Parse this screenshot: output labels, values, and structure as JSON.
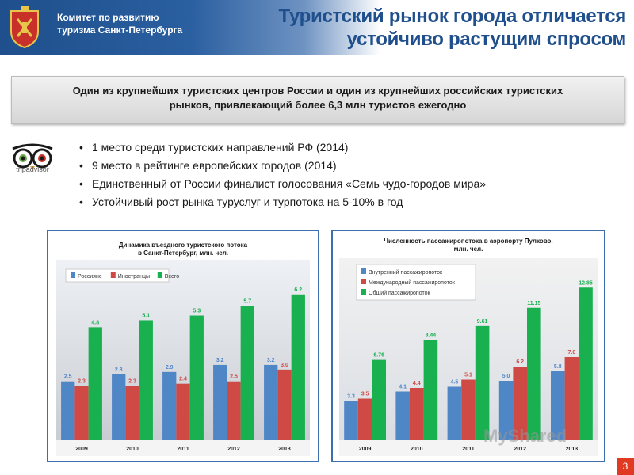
{
  "header": {
    "org_name_line1": "Комитет по развитию",
    "org_name_line2": "туризма Санкт-Петербурга",
    "title_line1": "Туристский рынок города отличается",
    "title_line2": "устойчиво растущим спросом",
    "emblem_icon": "coat-of-arms-icon"
  },
  "callout": {
    "line1": "Один из крупнейших туристских центров России и один из крупнейших российских туристских",
    "line2": "рынков, привлекающий более 6,3 млн туристов ежегодно"
  },
  "tripadvisor": {
    "label": "tripadvisor",
    "icon": "owl-logo-icon"
  },
  "bullets": [
    "1 место среди туристских направлений РФ (2014)",
    "9 место в рейтинге европейских городов (2014)",
    "Единственный от России финалист голосования «Семь чудо-городов мира»",
    "Устойчивый рост рынка туруслуг и турпотока на 5-10% в год"
  ],
  "colors": {
    "series_blue": "#4f86c6",
    "series_red": "#cf4a45",
    "series_green": "#19b050",
    "header_blue": "#1f4f8c"
  },
  "chart_data": [
    {
      "type": "bar",
      "title_line1": "Динамика въездного туристского потока",
      "title_line2": "в Санкт-Петербург, млн. чел.",
      "categories": [
        "2009",
        "2010",
        "2011",
        "2012",
        "2013"
      ],
      "series": [
        {
          "name": "Россияне",
          "values": [
            2.5,
            2.8,
            2.9,
            3.2,
            3.2
          ],
          "labels": [
            "2.5",
            "2.8",
            "2.9",
            "3.2",
            "3.2"
          ]
        },
        {
          "name": "Иностранцы",
          "values": [
            2.3,
            2.3,
            2.4,
            2.5,
            3.0
          ],
          "labels": [
            "2.3",
            "2.3",
            "2.4",
            "2.5",
            "3.0"
          ]
        },
        {
          "name": "Всего",
          "values": [
            4.8,
            5.1,
            5.3,
            5.7,
            6.2
          ],
          "labels": [
            "4.8",
            "5.1",
            "5.3",
            "5.7",
            "6.2"
          ]
        }
      ],
      "ylim": [
        0,
        7
      ],
      "legend": "top-left",
      "grid": false
    },
    {
      "type": "bar",
      "title_line1": "Численность пассажиропотока в аэропорту Пулково,",
      "title_line2": "млн. чел.",
      "categories": [
        "2009",
        "2010",
        "2011",
        "2012",
        "2013"
      ],
      "series": [
        {
          "name": "Внутренний пассажиропоток",
          "values": [
            3.3,
            4.1,
            4.5,
            5.0,
            5.8
          ],
          "labels": [
            "3.3",
            "4.1",
            "4.5",
            "5.0",
            "5.8"
          ]
        },
        {
          "name": "Международный пассажиропоток",
          "values": [
            3.5,
            4.4,
            5.1,
            6.2,
            7.0
          ],
          "labels": [
            "3.5",
            "4.4",
            "5.1",
            "6.2",
            "7.0"
          ]
        },
        {
          "name": "Общий пассажиропоток",
          "values": [
            6.76,
            8.44,
            9.61,
            11.15,
            12.85
          ],
          "labels": [
            "6.76",
            "8.44",
            "9.61",
            "11.15",
            "12.85"
          ]
        }
      ],
      "ylim": [
        0,
        14
      ],
      "legend": "top-left",
      "grid": false
    }
  ],
  "page_number": "3",
  "watermark": "MyShared"
}
